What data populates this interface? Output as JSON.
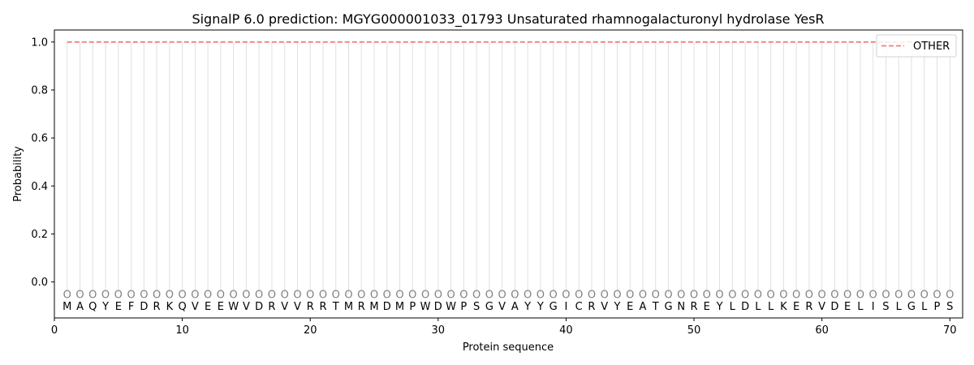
{
  "chart_data": {
    "type": "line",
    "title": "SignalP 6.0 prediction: MGYG000001033_01793 Unsaturated rhamnogalacturonyl hydrolase YesR",
    "xlabel": "Protein sequence",
    "ylabel": "Probability",
    "xlim": [
      0,
      71
    ],
    "ylim": [
      -0.15,
      1.05
    ],
    "xticks": [
      0,
      10,
      20,
      30,
      40,
      50,
      60,
      70
    ],
    "yticks": [
      0.0,
      0.2,
      0.4,
      0.6,
      0.8,
      1.0
    ],
    "ytick_labels": [
      "0.0",
      "0.2",
      "0.4",
      "0.6",
      "0.8",
      "1.0"
    ],
    "sequence": [
      "M",
      "A",
      "Q",
      "Y",
      "E",
      "F",
      "D",
      "R",
      "K",
      "Q",
      "V",
      "E",
      "E",
      "W",
      "V",
      "D",
      "R",
      "V",
      "V",
      "R",
      "R",
      "T",
      "M",
      "R",
      "M",
      "D",
      "M",
      "P",
      "W",
      "D",
      "W",
      "P",
      "S",
      "G",
      "V",
      "A",
      "Y",
      "Y",
      "G",
      "I",
      "C",
      "R",
      "V",
      "Y",
      "E",
      "A",
      "T",
      "G",
      "N",
      "R",
      "E",
      "Y",
      "L",
      "D",
      "L",
      "L",
      "K",
      "E",
      "R",
      "V",
      "D",
      "E",
      "L",
      "I",
      "S",
      "L",
      "G",
      "L",
      "P",
      "S"
    ],
    "region_label": "O",
    "series": [
      {
        "name": "OTHER",
        "color": "#f08080",
        "style": "dashed",
        "x_start": 1,
        "x_end": 70,
        "value": 1.0
      }
    ],
    "legend_position": "top-right",
    "grid": false,
    "colors": {
      "residue_line": "#e0e0e0",
      "region_label": "#808080"
    }
  }
}
